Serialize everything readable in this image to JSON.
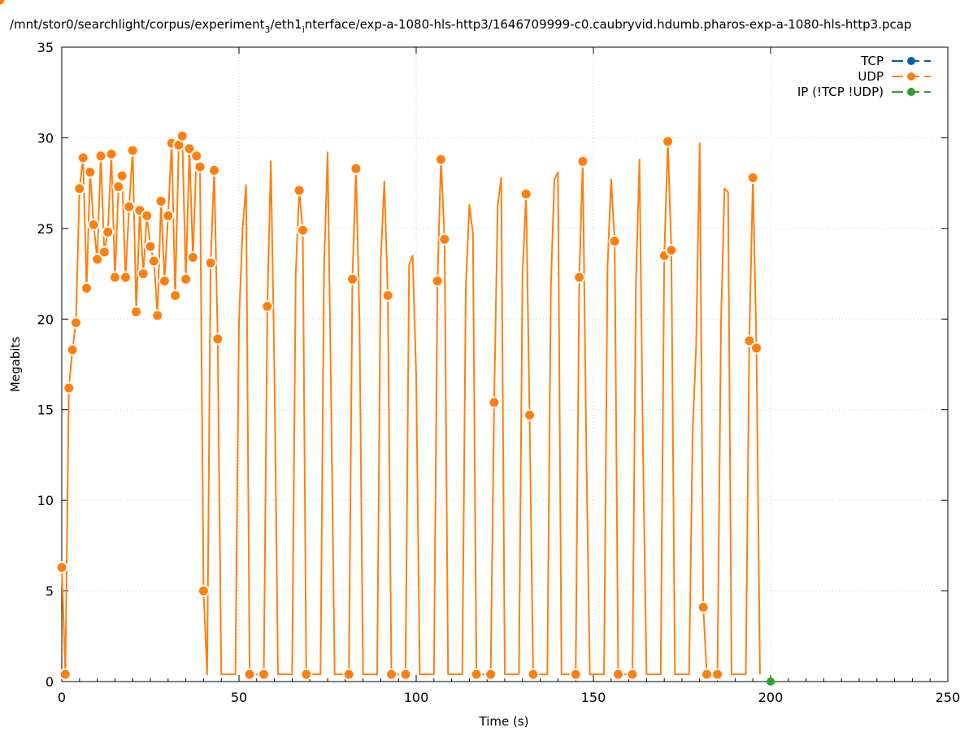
{
  "chart_data": {
    "type": "line",
    "title_parts": {
      "a": "/mnt/stor0/searchlight/corpus/experiment",
      "sub1": "3",
      "b": "/eth1",
      "sub2": "i",
      "c": "nterface/exp-a-1080-hls-http3/1646709999-c0.caubryvid.hdumb.pharos-exp-a-1080-hls-http3.pcap"
    },
    "xlabel": "Time (s)",
    "ylabel": "Megabits",
    "xlim": [
      0,
      250
    ],
    "ylim": [
      0,
      35
    ],
    "xticks": [
      "0",
      "50",
      "100",
      "150",
      "200",
      "250"
    ],
    "yticks": [
      "0",
      "5",
      "10",
      "15",
      "20",
      "25",
      "30",
      "35"
    ],
    "grid": true,
    "legend_position": "top-right",
    "series": [
      {
        "name": "TCP",
        "color": "#0060ad",
        "x": [],
        "y": []
      },
      {
        "name": "UDP",
        "color": "#ff7f0e",
        "x": [
          0,
          1,
          2,
          3,
          4,
          5,
          6,
          7,
          8,
          9,
          10,
          11,
          12,
          13,
          14,
          15,
          16,
          17,
          18,
          19,
          20,
          21,
          22,
          23,
          24,
          25,
          26,
          27,
          28,
          29,
          30,
          31,
          32,
          33,
          34,
          35,
          36,
          37,
          38,
          39,
          40,
          41,
          42,
          43,
          44,
          45,
          49,
          50,
          51,
          52,
          53,
          57,
          58,
          59,
          60,
          61,
          65,
          66,
          67,
          68,
          69,
          73,
          74,
          75,
          76,
          77,
          81,
          82,
          83,
          84,
          85,
          89,
          90,
          91,
          92,
          93,
          97,
          98,
          99,
          100,
          101,
          105,
          106,
          107,
          108,
          109,
          113,
          114,
          115,
          116,
          117,
          121,
          122,
          123,
          124,
          125,
          129,
          130,
          131,
          132,
          133,
          137,
          138,
          139,
          140,
          141,
          145,
          146,
          147,
          148,
          149,
          153,
          154,
          155,
          156,
          157,
          161,
          162,
          163,
          164,
          165,
          169,
          170,
          171,
          172,
          173,
          177,
          178,
          179,
          180,
          181,
          182,
          185,
          186,
          187,
          188,
          189,
          193,
          194,
          195,
          196,
          197
        ],
        "y": [
          6.3,
          0.4,
          16.2,
          18.3,
          19.8,
          27.2,
          28.9,
          21.7,
          28.1,
          25.2,
          23.3,
          29.0,
          23.7,
          24.8,
          29.1,
          22.3,
          27.3,
          27.9,
          22.3,
          26.2,
          29.3,
          20.4,
          26.0,
          22.5,
          25.7,
          24.0,
          23.2,
          20.2,
          26.5,
          22.1,
          25.7,
          29.7,
          21.3,
          29.6,
          30.1,
          22.2,
          29.4,
          23.4,
          29.0,
          28.4,
          5.0,
          0.4,
          23.1,
          28.2,
          18.9,
          0.4,
          0.4,
          19.8,
          24.9,
          27.4,
          0.4,
          0.4,
          20.7,
          28.7,
          17.1,
          0.4,
          0.4,
          22.5,
          27.1,
          24.9,
          0.4,
          0.4,
          22.7,
          29.2,
          15.4,
          0.4,
          0.4,
          22.2,
          28.3,
          20.1,
          0.4,
          0.4,
          23.2,
          27.6,
          21.3,
          0.4,
          0.4,
          23.0,
          23.5,
          16.9,
          0.4,
          0.4,
          22.1,
          28.8,
          24.4,
          0.4,
          0.4,
          21.7,
          26.3,
          24.7,
          0.4,
          0.4,
          15.4,
          26.3,
          27.8,
          0.4,
          0.4,
          22.4,
          26.9,
          14.7,
          0.4,
          0.4,
          21.8,
          27.7,
          28.1,
          0.4,
          0.4,
          22.3,
          28.7,
          12.8,
          0.4,
          0.4,
          22.9,
          27.7,
          24.3,
          0.4,
          0.4,
          21.9,
          28.8,
          12.8,
          0.4,
          0.4,
          23.5,
          29.8,
          23.8,
          0.4,
          0.4,
          13.7,
          18.6,
          29.7,
          4.1,
          0.4,
          0.4,
          19.8,
          27.2,
          27.0,
          0.4,
          0.4,
          18.8,
          27.8,
          18.4,
          0.4
        ],
        "markers_at": [
          0,
          1,
          2,
          3,
          4,
          5,
          6,
          7,
          8,
          9,
          10,
          11,
          12,
          13,
          14,
          15,
          16,
          17,
          18,
          19,
          20,
          21,
          22,
          23,
          24,
          25,
          26,
          27,
          28,
          29,
          30,
          31,
          32,
          33,
          34,
          35,
          36,
          37,
          38,
          39,
          40,
          42,
          43,
          44,
          50,
          51,
          52,
          58,
          59,
          60,
          66,
          67,
          68,
          74,
          75,
          76,
          82,
          83,
          84,
          90,
          91,
          92,
          98,
          99,
          100,
          106,
          107,
          108,
          114,
          115,
          116,
          122,
          123,
          124,
          130,
          131,
          132,
          138,
          139,
          140,
          146,
          147,
          148,
          154,
          155,
          156,
          162,
          163,
          164,
          170,
          171,
          172,
          178,
          179,
          180,
          181,
          186,
          187,
          188,
          194,
          195,
          196
        ]
      },
      {
        "name": "IP (!TCP  !UDP)",
        "color": "#2ca02c",
        "x": [
          200
        ],
        "y": [
          0
        ]
      }
    ]
  }
}
